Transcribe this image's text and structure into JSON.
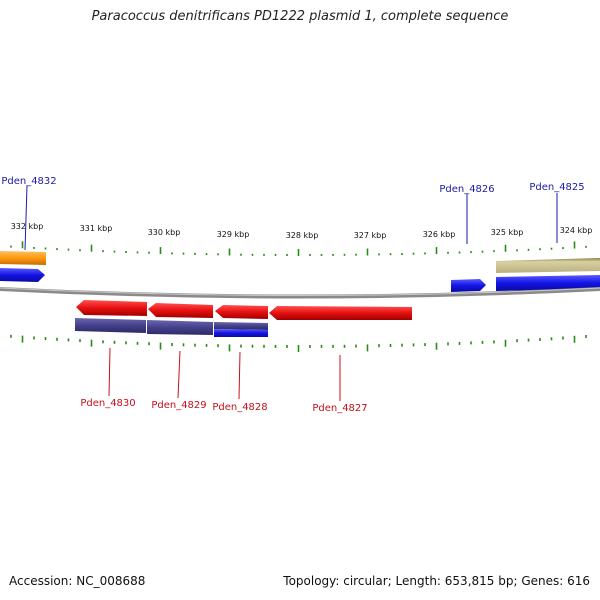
{
  "header": {
    "title": "Paracoccus denitrificans PD1222 plasmid 1, complete sequence"
  },
  "footer": {
    "accession": "Accession: NC_008688",
    "summary": "Topology: circular; Length: 653,815 bp; Genes: 616"
  },
  "ruler": {
    "unit": "kbp",
    "ticks": [
      "332 kbp",
      "331 kbp",
      "330 kbp",
      "329 kbp",
      "328 kbp",
      "327 kbp",
      "326 kbp",
      "325 kbp",
      "324 kbp"
    ]
  },
  "genes": {
    "top": [
      {
        "name": "Pden_4832"
      },
      {
        "name": "Pden_4826"
      },
      {
        "name": "Pden_4825"
      }
    ],
    "bottom": [
      {
        "name": "Pden_4830"
      },
      {
        "name": "Pden_4829"
      },
      {
        "name": "Pden_4828"
      },
      {
        "name": "Pden_4827"
      }
    ]
  },
  "colors": {
    "forward_cds": "#1a1ae0",
    "reverse_cds": "#e01010",
    "orange_feature": "#ff9a10",
    "khaki_feature": "#c8c08a",
    "purple_feature": "#4a4690",
    "backbone": "#8a8a8a",
    "gc_tick": "#2a8a1a",
    "top_label": "#1a1aa8",
    "bottom_label": "#c8101a"
  }
}
